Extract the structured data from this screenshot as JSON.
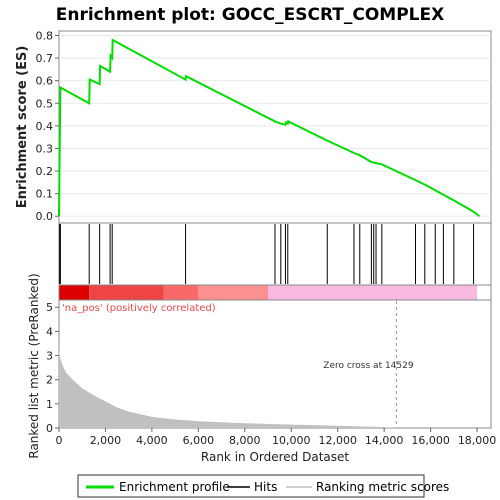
{
  "chart_data": {
    "type": "line",
    "title": "Enrichment plot: GOCC_ESCRT_COMPLEX",
    "es_panel": {
      "ylabel": "Enrichment score (ES)",
      "ylim": [
        -0.03,
        0.82
      ],
      "yticks": [
        0.0,
        0.1,
        0.2,
        0.3,
        0.4,
        0.5,
        0.6,
        0.7,
        0.8
      ],
      "ytick_labels": [
        "0.0",
        "0.1",
        "0.2",
        "0.3",
        "0.4",
        "0.5",
        "0.6",
        "0.7",
        "0.8"
      ],
      "series_color": "#00dd00",
      "points": [
        [
          0,
          0.0
        ],
        [
          30,
          0.31
        ],
        [
          60,
          0.57
        ],
        [
          1300,
          0.5
        ],
        [
          1320,
          0.605
        ],
        [
          1750,
          0.585
        ],
        [
          1770,
          0.665
        ],
        [
          2200,
          0.64
        ],
        [
          2220,
          0.71
        ],
        [
          2290,
          0.7
        ],
        [
          2310,
          0.78
        ],
        [
          5450,
          0.605
        ],
        [
          5470,
          0.62
        ],
        [
          9300,
          0.42
        ],
        [
          9550,
          0.41
        ],
        [
          9750,
          0.405
        ],
        [
          9770,
          0.415
        ],
        [
          9850,
          0.41
        ],
        [
          9870,
          0.42
        ],
        [
          11550,
          0.335
        ],
        [
          12700,
          0.28
        ],
        [
          12950,
          0.27
        ],
        [
          13450,
          0.24
        ],
        [
          13650,
          0.235
        ],
        [
          13900,
          0.23
        ],
        [
          15350,
          0.16
        ],
        [
          15750,
          0.14
        ],
        [
          16200,
          0.115
        ],
        [
          16550,
          0.095
        ],
        [
          17000,
          0.07
        ],
        [
          17850,
          0.02
        ],
        [
          18100,
          0.0
        ]
      ]
    },
    "hits": [
      30,
      60,
      1300,
      1750,
      2200,
      2290,
      5450,
      9300,
      9550,
      9750,
      9850,
      11550,
      12700,
      12950,
      13450,
      13550,
      13650,
      13900,
      15350,
      15750,
      16200,
      16550,
      17000,
      17850
    ],
    "rank_bar": {
      "segments": [
        {
          "from": 0,
          "to": 1300,
          "color": "#dd0000"
        },
        {
          "from": 1300,
          "to": 4500,
          "color": "#ee4444"
        },
        {
          "from": 4500,
          "to": 6000,
          "color": "#f86a6a"
        },
        {
          "from": 6000,
          "to": 9000,
          "color": "#fc9090"
        },
        {
          "from": 9000,
          "to": 18000,
          "color": "#f8b8e0"
        }
      ]
    },
    "metric_panel": {
      "ylabel": "Ranked list metric (PreRanked)",
      "ylim": [
        0,
        5.3
      ],
      "yticks": [
        0,
        1,
        2,
        3,
        4,
        5
      ],
      "ytick_labels": [
        "0",
        "1",
        "2",
        "3",
        "4",
        "5"
      ],
      "fill_color": "#c0c0c0",
      "points": [
        [
          0,
          3.3
        ],
        [
          50,
          2.9
        ],
        [
          150,
          2.6
        ],
        [
          300,
          2.3
        ],
        [
          600,
          2.0
        ],
        [
          1000,
          1.65
        ],
        [
          1500,
          1.35
        ],
        [
          2000,
          1.1
        ],
        [
          2500,
          0.85
        ],
        [
          3000,
          0.68
        ],
        [
          4000,
          0.46
        ],
        [
          5000,
          0.35
        ],
        [
          6000,
          0.28
        ],
        [
          8000,
          0.2
        ],
        [
          10000,
          0.14
        ],
        [
          12000,
          0.09
        ],
        [
          14000,
          0.04
        ],
        [
          14529,
          0.0
        ],
        [
          18000,
          0.0
        ]
      ],
      "na_pos_label": "'na_pos' (positively correlated)",
      "zero_cross_label": "Zero cross at 14529",
      "zero_cross_x": 14529
    },
    "xaxis": {
      "label": "Rank in Ordered Dataset",
      "xlim": [
        0,
        18600
      ],
      "ticks": [
        0,
        2000,
        4000,
        6000,
        8000,
        10000,
        12000,
        14000,
        16000,
        18000
      ],
      "tick_labels": [
        "0",
        "2,000",
        "4,000",
        "6,000",
        "8,000",
        "10,000",
        "12,000",
        "14,000",
        "16,000",
        "18,000"
      ]
    },
    "legend": {
      "placement": "bottom",
      "entries": [
        {
          "label": "Enrichment profile",
          "color": "#00dd00"
        },
        {
          "label": "Hits",
          "color": "#000000"
        },
        {
          "label": "Ranking metric scores",
          "color": "#c0c0c0"
        }
      ]
    }
  }
}
